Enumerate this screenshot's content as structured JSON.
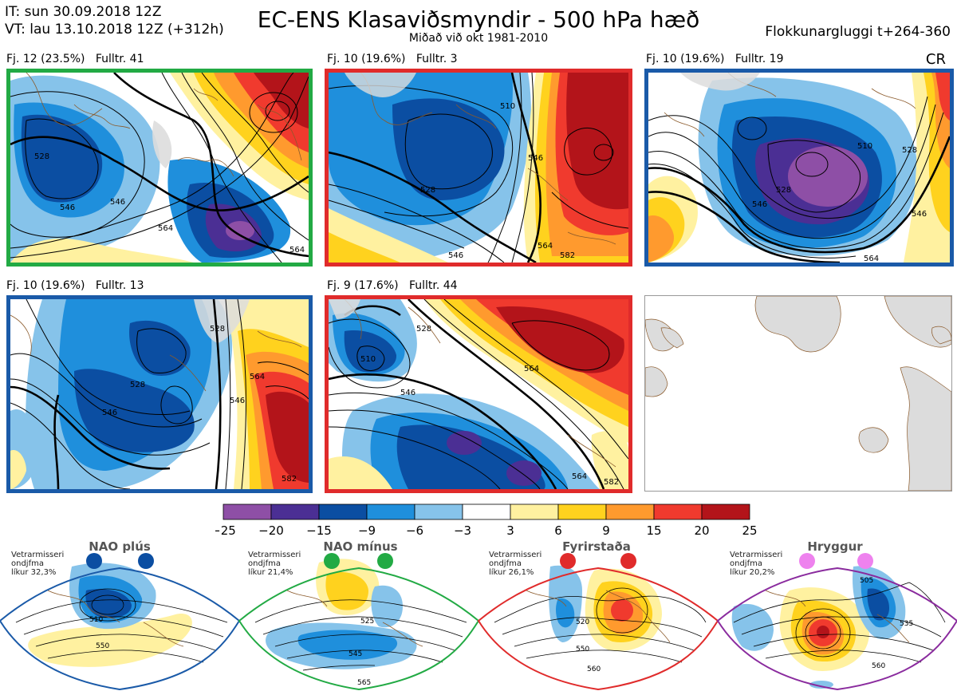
{
  "header": {
    "it_line": "IT: sun 30.09.2018 12Z",
    "vt_line": "VT: lau 13.10.2018 12Z  (+312h)",
    "title": "EC-ENS Klasaviðsmyndir - 500 hPa hæð",
    "subtitle": "Miðað við okt 1981-2010",
    "window": "Flokkunargluggi t+264-360",
    "corner_code": "CR"
  },
  "panels": [
    {
      "label": "Fj. 12 (23.5%)   Fulltr. 41",
      "border_color": "#22aa44",
      "contour_labels": [
        "528",
        "546",
        "546",
        "564",
        "564"
      ]
    },
    {
      "label": "Fj. 10 (19.6%)   Fulltr. 3",
      "border_color": "#e02b2b",
      "contour_labels": [
        "510",
        "528",
        "546",
        "564",
        "582",
        "546"
      ]
    },
    {
      "label": "Fj. 10 (19.6%)   Fulltr. 19",
      "border_color": "#1a5aa8",
      "contour_labels": [
        "510",
        "528",
        "546",
        "546",
        "564",
        "528"
      ]
    },
    {
      "label": "Fj. 10 (19.6%)   Fulltr. 13",
      "border_color": "#1a5aa8",
      "contour_labels": [
        "528",
        "528",
        "546",
        "564",
        "546",
        "582"
      ]
    },
    {
      "label": "Fj. 9 (17.6%)   Fulltr. 44",
      "border_color": "#e02b2b",
      "contour_labels": [
        "528",
        "510",
        "546",
        "564",
        "564",
        "582"
      ]
    }
  ],
  "colorbar": {
    "ticks": [
      "−25",
      "−20",
      "−15",
      "−9",
      "−6",
      "−3",
      "3",
      "6",
      "9",
      "15",
      "20",
      "25"
    ],
    "colors": [
      "#8e4fa6",
      "#4b2f94",
      "#0b4ea2",
      "#1f8fdc",
      "#86c3ea",
      "#ffffff",
      "#fff1a0",
      "#ffd21e",
      "#ff9a2e",
      "#f03a2e",
      "#b3141a"
    ]
  },
  "climatology": [
    {
      "name": "NAO plús",
      "note": [
        "Vetrarmisseri",
        "ondjfma",
        "líkur 32,3%"
      ],
      "border_color": "#1a5aa8",
      "dot_color": "#0b4ea2",
      "contour_labels": [
        "510",
        "550"
      ]
    },
    {
      "name": "NAO mínus",
      "note": [
        "Vetrarmisseri",
        "ondjfma",
        "líkur 21,4%"
      ],
      "border_color": "#22aa44",
      "dot_color": "#22aa44",
      "contour_labels": [
        "525",
        "545",
        "565"
      ]
    },
    {
      "name": "Fyrirstaða",
      "note": [
        "Vetrarmisseri",
        "ondjfma",
        "líkur 26,1%"
      ],
      "border_color": "#e02b2b",
      "dot_color": "#e02b2b",
      "contour_labels": [
        "520",
        "550",
        "560"
      ]
    },
    {
      "name": "Hryggur",
      "note": [
        "Vetrarmisseri",
        "ondjfma",
        "líkur 20,2%"
      ],
      "border_color": "#8a2b9e",
      "dot_color": "#ee82ee",
      "contour_labels": [
        "505",
        "535",
        "560"
      ]
    }
  ]
}
